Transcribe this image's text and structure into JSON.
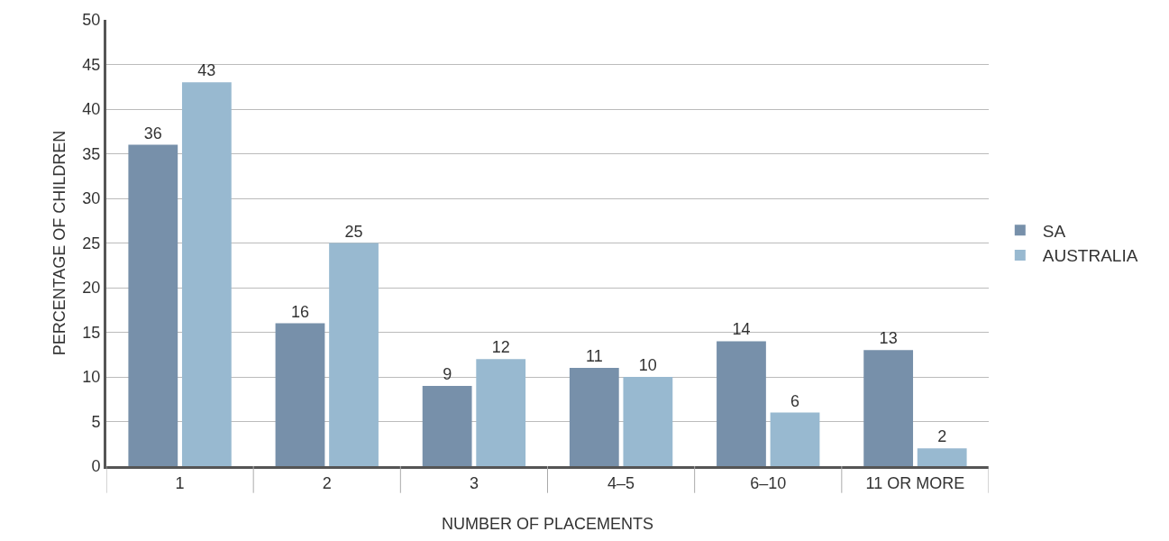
{
  "chart_data": {
    "type": "bar",
    "xlabel": "NUMBER OF PLACEMENTS",
    "ylabel": "PERCENTAGE OF CHILDREN",
    "categories": [
      "1",
      "2",
      "3",
      "4–5",
      "6–10",
      "11 OR MORE"
    ],
    "series": [
      {
        "name": "SA",
        "color": "#7790aa",
        "values": [
          36,
          16,
          9,
          11,
          14,
          13
        ]
      },
      {
        "name": "AUSTRALIA",
        "color": "#98b9d0",
        "values": [
          43,
          25,
          12,
          10,
          6,
          2
        ]
      }
    ],
    "ylim": [
      0,
      50
    ],
    "yticks": [
      0,
      5,
      10,
      15,
      20,
      25,
      30,
      35,
      40,
      45,
      50
    ],
    "grid": "y",
    "legend": "right",
    "data_labels": true
  }
}
